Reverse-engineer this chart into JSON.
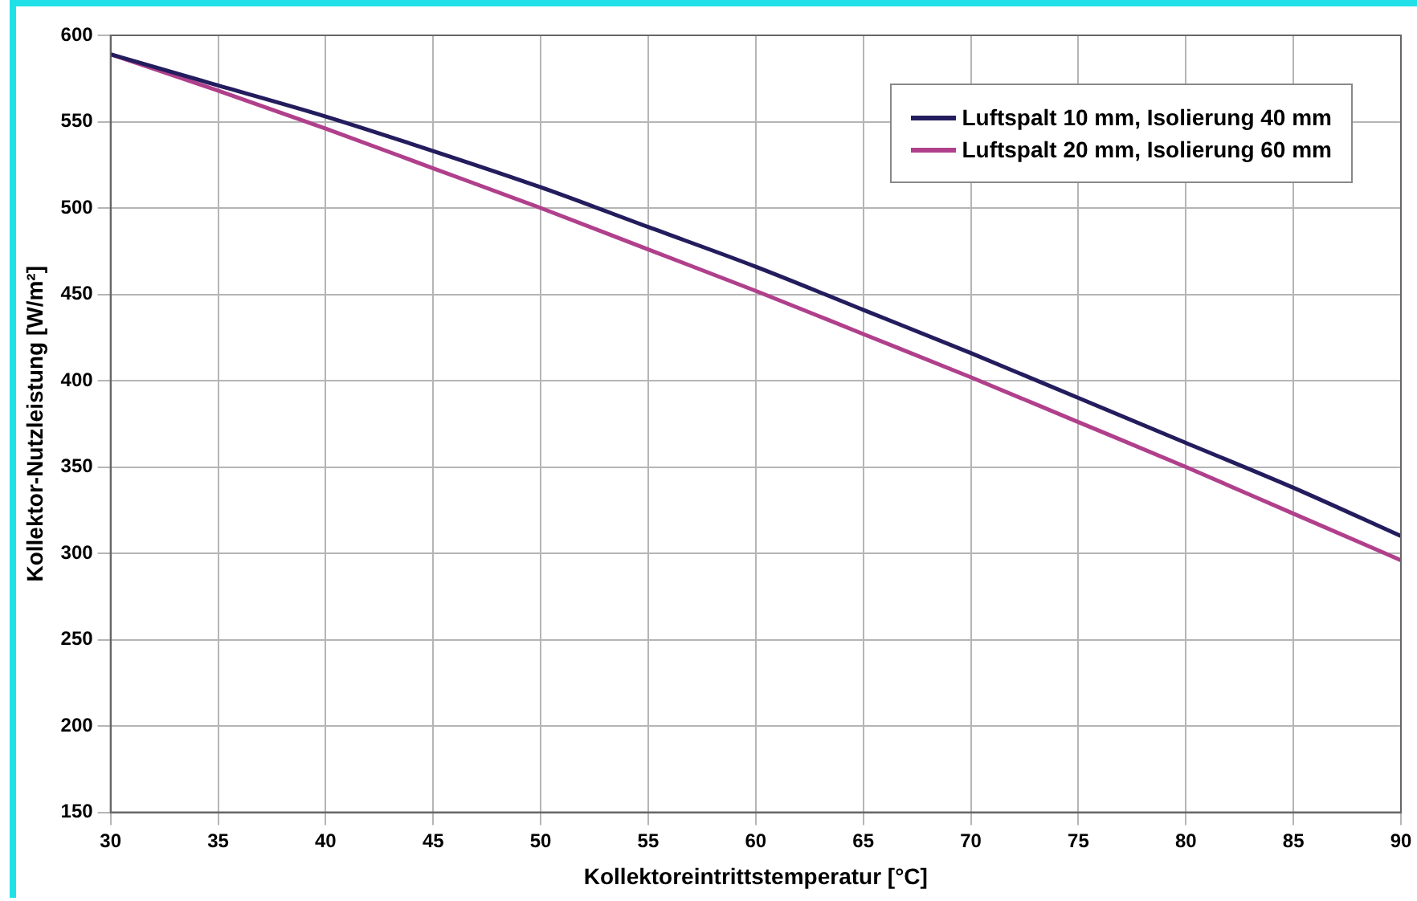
{
  "chart_data": {
    "type": "line",
    "xlabel": "Kollektoreintrittstemperatur [°C]",
    "ylabel": "Kollektor-Nutzleistung [W/m²]",
    "x": [
      30,
      35,
      40,
      45,
      50,
      55,
      60,
      65,
      70,
      75,
      80,
      85,
      90
    ],
    "series": [
      {
        "name": "Luftspalt 10 mm, Isolierung 40 mm",
        "color": "#231d5e",
        "values": [
          589,
          571,
          553,
          533,
          512,
          489,
          466,
          441,
          416,
          390,
          364,
          338,
          310
        ]
      },
      {
        "name": "Luftspalt 20 mm, Isolierung 60 mm",
        "color": "#b0408c",
        "values": [
          589,
          568,
          546,
          523,
          500,
          476,
          452,
          427,
          402,
          376,
          350,
          323,
          296
        ]
      }
    ],
    "xlim": [
      30,
      90
    ],
    "xticks": [
      30,
      35,
      40,
      45,
      50,
      55,
      60,
      65,
      70,
      75,
      80,
      85,
      90
    ],
    "ylim": [
      150,
      600
    ],
    "yticks": [
      150,
      200,
      250,
      300,
      350,
      400,
      450,
      500,
      550,
      600
    ],
    "grid": true,
    "legend": "top right",
    "marker": "none",
    "line_style": "solid"
  }
}
